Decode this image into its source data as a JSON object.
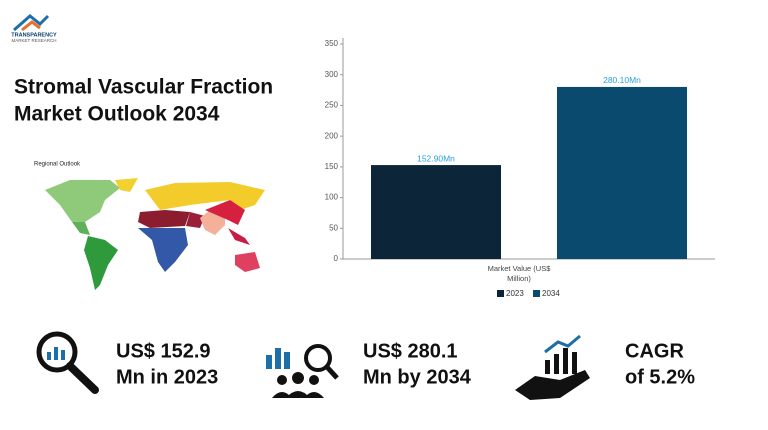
{
  "header": {
    "logo": [
      "TRANSPARENCY",
      "MARKET RESEARCH"
    ],
    "title": [
      "Stromal Vascular Fraction",
      "Market Outlook 2034"
    ]
  },
  "map": {
    "label": "Regional Outlook"
  },
  "chart_data": {
    "type": "bar",
    "categories": [
      "Market Value (US$ Million)"
    ],
    "series": [
      {
        "name": "2023",
        "color": "#0d2538",
        "values": [
          152.9
        ],
        "value_labels": [
          "152.90Mn"
        ]
      },
      {
        "name": "2034",
        "color": "#0a4a6e",
        "values": [
          280.1
        ],
        "value_labels": [
          "280.10Mn"
        ]
      }
    ],
    "ylim": [
      0,
      350
    ],
    "yticks": [
      0,
      50,
      100,
      150,
      200,
      250,
      300,
      350
    ],
    "grid": false,
    "legend": "bottom"
  },
  "stats": [
    {
      "lines": [
        "US$ 152.9",
        "Mn in 2023"
      ]
    },
    {
      "lines": [
        "US$ 280.1",
        "Mn by 2034"
      ]
    },
    {
      "lines": [
        "CAGR",
        "of 5.2%"
      ]
    }
  ]
}
